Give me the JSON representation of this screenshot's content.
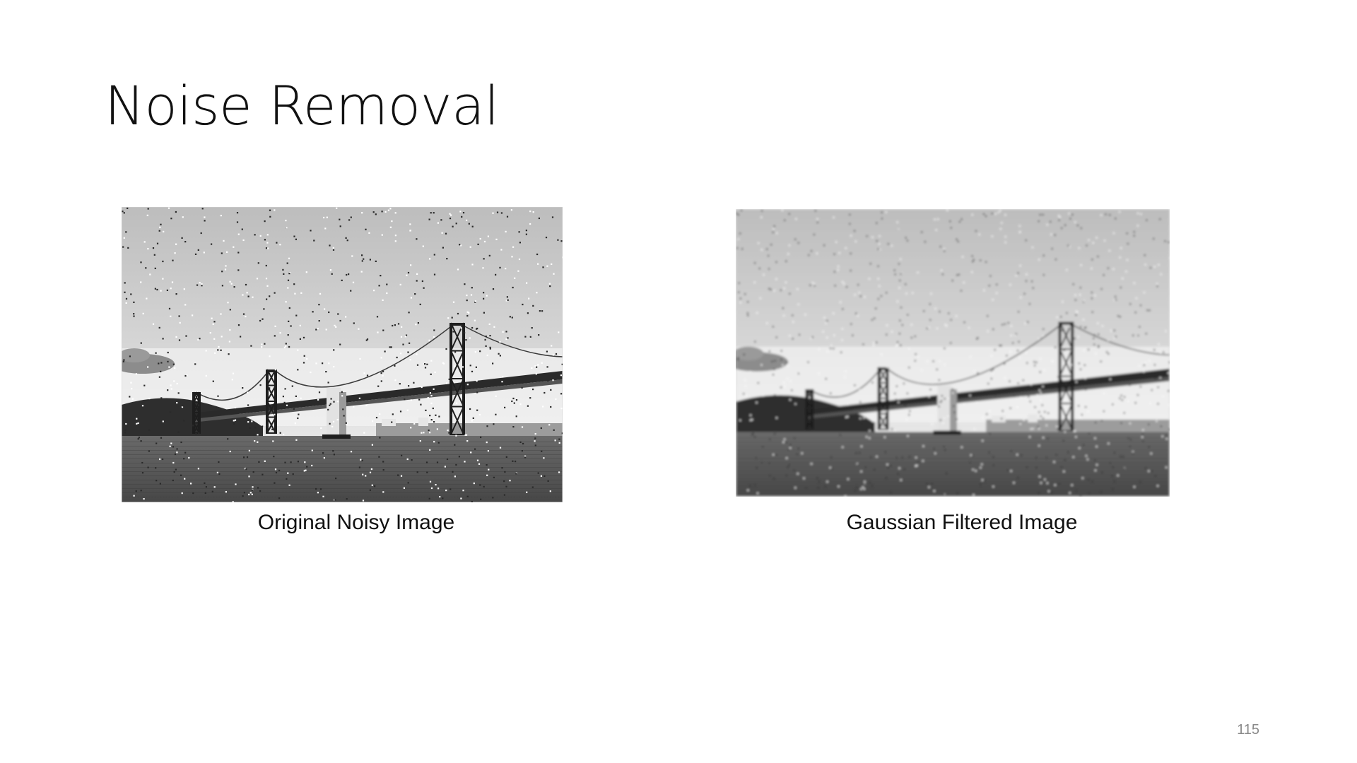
{
  "slide": {
    "title": "Noise Removal",
    "page_number": "115"
  },
  "figures": [
    {
      "caption": "Original Noisy Image",
      "icon": "bridge-photo-noisy",
      "filter": "none"
    },
    {
      "caption": "Gaussian Filtered Image",
      "icon": "bridge-photo-blurred",
      "filter": "gaussian-blur"
    }
  ],
  "colors": {
    "sky_top": "#bdbdbd",
    "sky_bottom": "#f2f2f2",
    "water": "#555555",
    "hills": "#2e2e2e",
    "tower": "#1e1e1e",
    "title_text": "#111111",
    "page_number_text": "#8a8a8a"
  }
}
